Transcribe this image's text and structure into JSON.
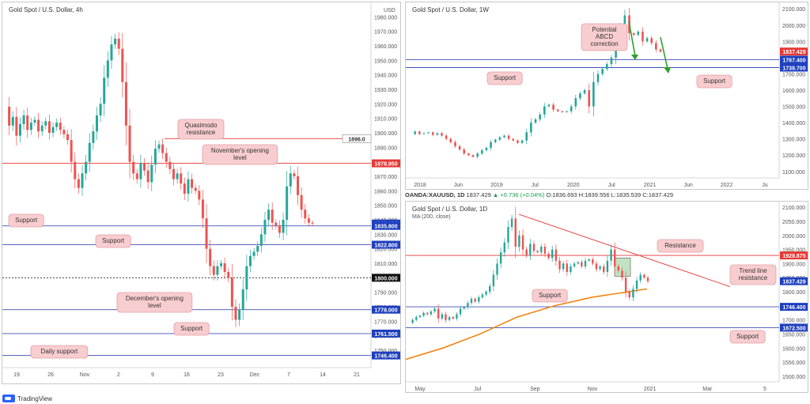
{
  "colors": {
    "up": "#26a69a",
    "down": "#ef5350",
    "support_line": "#3f51b5",
    "resist_line": "#e53935",
    "tag_blue": "#1e3fbf",
    "tag_red": "#e53935",
    "callout_bg": "#f8cdd0",
    "callout_border": "#e0a0a6",
    "ma": "#f57c00",
    "arrow_green": "#2e9e2e"
  },
  "brand": {
    "name": "TradingView"
  },
  "ohlc_bar": {
    "symbol": "OANDA:XAUUSD, 1D",
    "price": "1837.429",
    "change": "▲ +0.736 (+0.04%)",
    "o_label": "O:",
    "o": "1836.693",
    "h_label": "H:",
    "h": "1839.556",
    "l_label": "L:",
    "l": "1835.539",
    "c_label": "C:",
    "c": "1837.429"
  },
  "chart_data": [
    {
      "id": "h4",
      "type": "line",
      "title": "Gold Spot / U.S. Dollar, 4h",
      "currency": "USD",
      "ylim": [
        1738,
        1990
      ],
      "y_ticks": [
        1750,
        1760,
        1770,
        1780,
        1790,
        1800,
        1810,
        1820,
        1830,
        1840,
        1850,
        1860,
        1870,
        1880,
        1890,
        1900,
        1910,
        1920,
        1930,
        1940,
        1950,
        1960,
        1970,
        1980
      ],
      "x_ticks": [
        "19",
        "26",
        "Nov",
        "2",
        "9",
        "16",
        "23",
        "Dec",
        "7",
        "14",
        "21"
      ],
      "series": [
        {
          "values": [
            1918,
            1905,
            1911,
            1898,
            1906,
            1912,
            1902,
            1907,
            1909,
            1901,
            1905,
            1908,
            1900,
            1904,
            1907,
            1902,
            1899,
            1895,
            1880,
            1868,
            1862,
            1872,
            1880,
            1893,
            1901,
            1912,
            1920,
            1938,
            1950,
            1961,
            1965,
            1958,
            1935,
            1905,
            1880,
            1872,
            1868,
            1879,
            1874,
            1866,
            1878,
            1889,
            1892,
            1886,
            1880,
            1875,
            1868,
            1872,
            1865,
            1858,
            1868,
            1862,
            1860,
            1854,
            1841,
            1820,
            1808,
            1802,
            1808,
            1810,
            1804,
            1800,
            1780,
            1771,
            1778,
            1792,
            1808,
            1815,
            1818,
            1822,
            1830,
            1840,
            1847,
            1838,
            1836,
            1831,
            1840,
            1863,
            1872,
            1870,
            1857,
            1847,
            1841,
            1838,
            1837.4
          ]
        }
      ],
      "levels": [
        {
          "value": 1896.0,
          "kind": "resistance",
          "tag": "1896.0",
          "tag_style": "plain"
        },
        {
          "value": 1878.95,
          "kind": "resistance",
          "tag": "1878.950",
          "tag_style": "red"
        },
        {
          "value": 1837.429,
          "kind": "price",
          "tag": "1837.429",
          "tag_style": "blue"
        },
        {
          "value": 1835.8,
          "kind": "support",
          "tag": "1835.800",
          "tag_style": "blue"
        },
        {
          "value": 1822.8,
          "kind": "support",
          "tag": "1822.800",
          "tag_style": "blue"
        },
        {
          "value": 1800.0,
          "kind": "dotted",
          "tag": "1800.000",
          "tag_style": "black"
        },
        {
          "value": 1778.0,
          "kind": "support",
          "tag": "1778.000",
          "tag_style": "blue"
        },
        {
          "value": 1761.5,
          "kind": "support",
          "tag": "1761.500",
          "tag_style": "blue"
        },
        {
          "value": 1746.4,
          "kind": "support",
          "tag": "1746.400",
          "tag_style": "blue"
        }
      ],
      "annotations": [
        "Quasimodo resistance",
        "November's opening level",
        "Support",
        "Support",
        "December's opening level",
        "Support",
        "Daily support"
      ]
    },
    {
      "id": "w1",
      "type": "line",
      "title": "Gold Spot / U.S. Dollar, 1W",
      "ylim": [
        1060,
        2140
      ],
      "y_ticks": [
        1100,
        1200,
        1300,
        1400,
        1500,
        1600,
        1700,
        1800,
        1900,
        2000,
        2100
      ],
      "x_ticks": [
        "2018",
        "Jun",
        "2019",
        "Jul",
        "2020",
        "Jul",
        "2021",
        "Jun",
        "2022",
        "Ju"
      ],
      "series": [
        {
          "values": [
            1330,
            1345,
            1330,
            1335,
            1340,
            1325,
            1335,
            1320,
            1300,
            1280,
            1255,
            1235,
            1210,
            1200,
            1190,
            1210,
            1230,
            1245,
            1280,
            1295,
            1310,
            1320,
            1300,
            1290,
            1275,
            1290,
            1340,
            1400,
            1420,
            1450,
            1500,
            1510,
            1480,
            1470,
            1465,
            1470,
            1500,
            1550,
            1580,
            1600,
            1500,
            1650,
            1700,
            1730,
            1760,
            1800,
            1900,
            1980,
            2060,
            1950,
            1940,
            1960,
            1900,
            1920,
            1890,
            1850,
            1837
          ]
        }
      ],
      "levels": [
        {
          "value": 1837.429,
          "kind": "price",
          "tag": "1837.429",
          "tag_style": "red"
        },
        {
          "value": 1787.4,
          "kind": "support",
          "tag": "1787.400",
          "tag_style": "blue"
        },
        {
          "value": 1738.7,
          "kind": "support",
          "tag": "1738.700",
          "tag_style": "blue"
        }
      ],
      "annotations": [
        "Potential ABCD correction",
        "Support",
        "Support"
      ]
    },
    {
      "id": "d1",
      "type": "line",
      "title": "Gold Spot / U.S. Dollar, 1D",
      "subtitle": "MA (200, close)",
      "ylim": [
        1480,
        2120
      ],
      "y_ticks": [
        1500,
        1550,
        1600,
        1650,
        1700,
        1750,
        1800,
        1850,
        1900,
        1950,
        2000,
        2050,
        2100
      ],
      "x_ticks": [
        "May",
        "Jul",
        "Sep",
        "Nov",
        "2021",
        "Mar",
        "5"
      ],
      "series": [
        {
          "name": "",
          "values": [
            1690,
            1700,
            1710,
            1715,
            1725,
            1720,
            1730,
            1740,
            1705,
            1720,
            1700,
            1710,
            1705,
            1720,
            1740,
            1745,
            1760,
            1775,
            1765,
            1780,
            1790,
            1800,
            1820,
            1860,
            1900,
            1940,
            1975,
            2030,
            2060,
            1960,
            2000,
            1950,
            1930,
            1970,
            1945,
            1940,
            1960,
            1935,
            1920,
            1950,
            1910,
            1880,
            1900,
            1870,
            1890,
            1900,
            1905,
            1890,
            1910,
            1915,
            1900,
            1880,
            1890,
            1870,
            1910,
            1950,
            1890,
            1875,
            1850,
            1800,
            1780,
            1810,
            1840,
            1860,
            1850,
            1837
          ]
        },
        {
          "name": "MA (200, close)",
          "values": [
            1560,
            1580,
            1600,
            1625,
            1650,
            1680,
            1710,
            1730,
            1750,
            1765,
            1780,
            1790,
            1800,
            1810
          ]
        }
      ],
      "levels": [
        {
          "value": 1928.875,
          "kind": "resistance",
          "tag": "1928.875",
          "tag_style": "red"
        },
        {
          "value": 1837.429,
          "kind": "price",
          "tag": "1837.429",
          "tag_style": "blue"
        },
        {
          "value": 1746.4,
          "kind": "support",
          "tag": "1746.400",
          "tag_style": "blue"
        },
        {
          "value": 1672.5,
          "kind": "support",
          "tag": "1672.500",
          "tag_style": "blue"
        }
      ],
      "annotations": [
        "Resistance",
        "Trend line resistance",
        "Support",
        "Support"
      ]
    }
  ]
}
